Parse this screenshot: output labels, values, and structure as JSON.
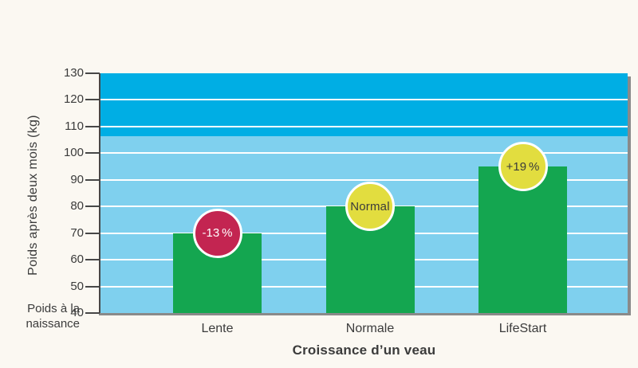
{
  "chart_data": {
    "type": "bar",
    "title": "",
    "xlabel": "Croissance d’un veau",
    "ylabel": "Poids après deux mois (kg)",
    "baseline_label": "Poids à la naissance",
    "baseline_label_lines": [
      "Poids à la",
      "naissance"
    ],
    "categories": [
      "Lente",
      "Normale",
      "LifeStart"
    ],
    "values": [
      70,
      80,
      95
    ],
    "badges": [
      {
        "label": "-13 %",
        "type": "negative"
      },
      {
        "label": "Normal",
        "type": "neutral"
      },
      {
        "label": "+19 %",
        "type": "positive"
      }
    ],
    "ylim": [
      40,
      130
    ],
    "yticks": [
      40,
      50,
      60,
      70,
      80,
      90,
      100,
      110,
      120,
      130
    ],
    "band_threshold": 106.5,
    "grid": true,
    "legend": null,
    "colors": {
      "background": "#fbf8f2",
      "band_top": "#00aee4",
      "band_bottom": "#7fd0ee",
      "gridline": "#ffffff",
      "bar": "#14a650",
      "badge_negative_bg": "#c32551",
      "badge_negative_text": "#ffffff",
      "badge_neutral_bg": "#e2dd3f",
      "badge_neutral_text": "#3b3b3b",
      "badge_positive_bg": "#e2dd3f",
      "badge_positive_text": "#3b3b3b",
      "text": "#3b3b3b",
      "axis": "#474747",
      "shadow": "#8a8a8a"
    }
  }
}
